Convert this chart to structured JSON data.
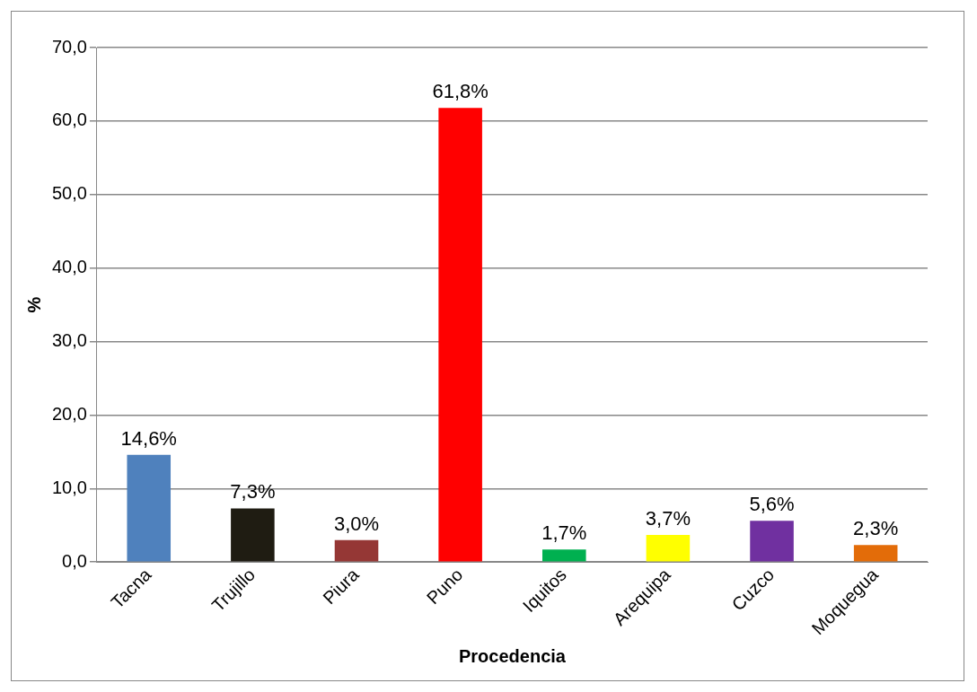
{
  "chart_data": {
    "type": "bar",
    "xlabel": "Procedencia",
    "ylabel": "%",
    "categories": [
      "Tacna",
      "Trujillo",
      "Piura",
      "Puno",
      "Iquitos",
      "Arequipa",
      "Cuzco",
      "Moquegua"
    ],
    "values": [
      14.6,
      7.3,
      3.0,
      61.8,
      1.7,
      3.7,
      5.6,
      2.3
    ],
    "colors": [
      "#4f81bd",
      "#1f1c12",
      "#953735",
      "#ff0000",
      "#00b050",
      "#ffff00",
      "#7030a0",
      "#e36c09"
    ],
    "value_labels": [
      "14,6%",
      "7,3%",
      "3,0%",
      "61,8%",
      "1,7%",
      "3,7%",
      "5,6%",
      "2,3%"
    ],
    "ylim": [
      0,
      70
    ],
    "yticks": [
      {
        "value": 0,
        "label": "0,0"
      },
      {
        "value": 10,
        "label": "10,0"
      },
      {
        "value": 20,
        "label": "20,0"
      },
      {
        "value": 30,
        "label": "30,0"
      },
      {
        "value": 40,
        "label": "40,0"
      },
      {
        "value": 50,
        "label": "50,0"
      },
      {
        "value": 60,
        "label": "60,0"
      },
      {
        "value": 70,
        "label": "70,0"
      }
    ],
    "grid": "y",
    "legend": false
  }
}
